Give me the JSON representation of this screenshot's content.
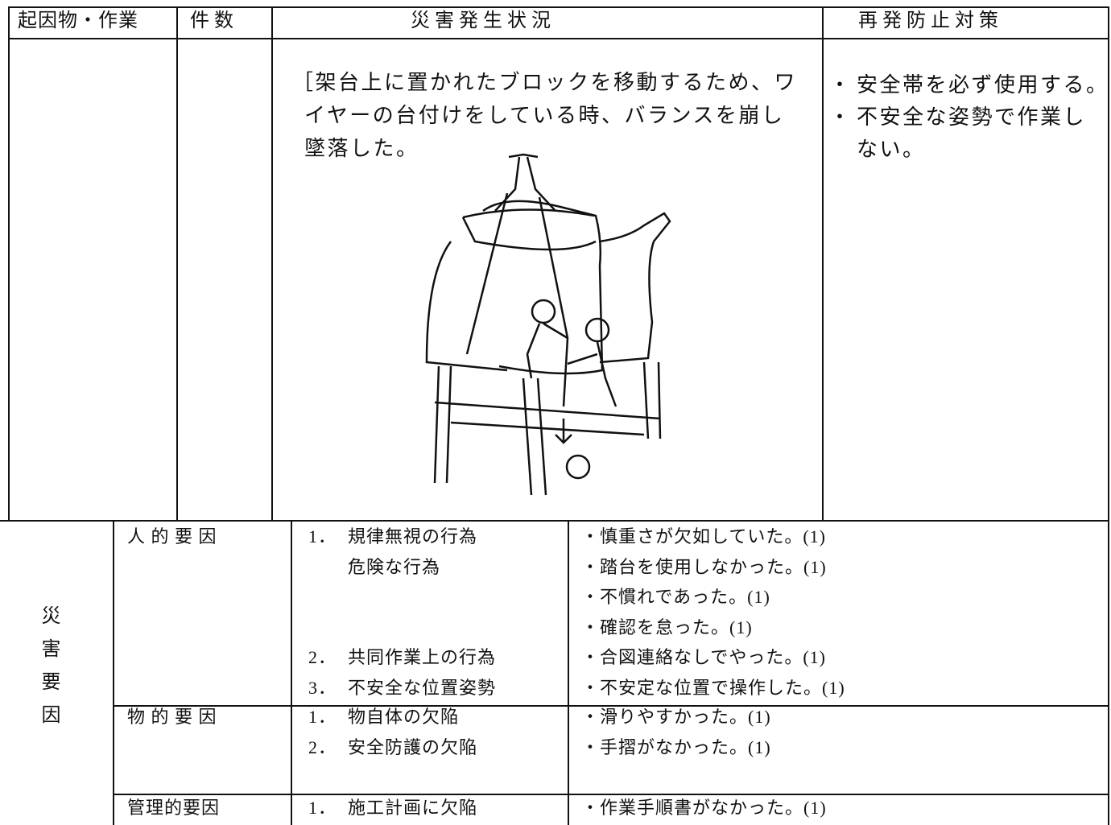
{
  "header": {
    "cells": [
      "起因物・作業",
      "件 数",
      "災 害 発 生 状 況",
      "再 発 防 止 対 策"
    ]
  },
  "situation": {
    "lines": [
      "［架台上に置かれたブロックを移動するため、ワ",
      "イヤーの台付けをしている時、バランスを崩し",
      "墜落した。"
    ]
  },
  "countermeasures": [
    {
      "bullet": "・",
      "lines": [
        "安全帯を必ず使用する。"
      ]
    },
    {
      "bullet": "・",
      "lines": [
        "不安全な姿勢で作業し",
        "ない。"
      ]
    }
  ],
  "factors": {
    "label": "災害要因",
    "groups": [
      {
        "category": "人 的 要 因",
        "items": [
          {
            "number": "1．",
            "lines": [
              "規律無視の行為",
              "危険な行為"
            ],
            "details": [
              "・慎重さが欠如していた。(1)",
              "・踏台を使用しなかった。(1)",
              "・不慣れであった。(1)",
              "・確認を怠った。(1)"
            ]
          },
          {
            "number": "2．",
            "lines": [
              "共同作業上の行為"
            ],
            "details": [
              "・合図連絡なしでやった。(1)"
            ]
          },
          {
            "number": "3．",
            "lines": [
              "不安全な位置姿勢"
            ],
            "details": [
              "・不安定な位置で操作した。(1)"
            ]
          }
        ]
      },
      {
        "category": "物 的 要 因",
        "items": [
          {
            "number": "1．",
            "lines": [
              "物自体の欠陥"
            ],
            "details": [
              "・滑りやすかった。(1)"
            ]
          },
          {
            "number": "2．",
            "lines": [
              "安全防護の欠陥"
            ],
            "details": [
              "・手摺がなかった。(1)"
            ]
          }
        ]
      },
      {
        "category": "管理的要因",
        "items": [
          {
            "number": "1．",
            "lines": [
              "施工計画に欠陥"
            ],
            "details": [
              "・作業手順書がなかった。(1)"
            ]
          }
        ]
      }
    ]
  }
}
